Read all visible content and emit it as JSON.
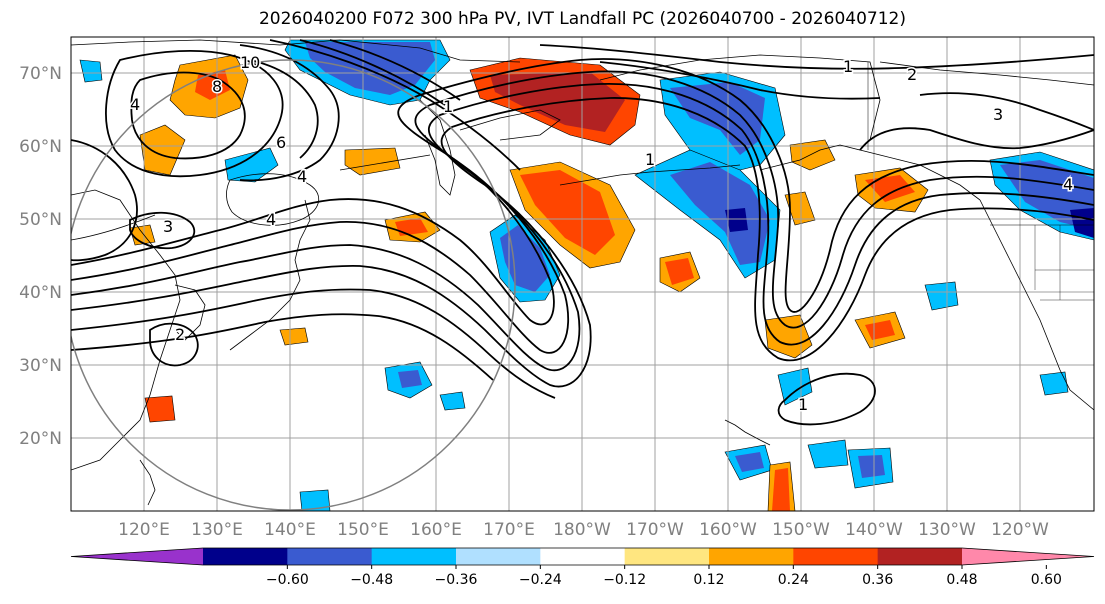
{
  "title": "2026040200 F072 300 hPa PV, IVT Landfall PC (2026040700 - 2026040712)",
  "lat_labels": [
    "70°N",
    "60°N",
    "50°N",
    "40°N",
    "30°N",
    "20°N"
  ],
  "lon_labels": [
    "120°E",
    "130°E",
    "140°E",
    "150°E",
    "160°E",
    "170°E",
    "180°W",
    "170°W",
    "160°W",
    "150°W",
    "140°W",
    "130°W",
    "120°W"
  ],
  "colorbar": {
    "ticks": [
      "−0.60",
      "−0.48",
      "−0.36",
      "−0.24",
      "−0.12",
      "0.12",
      "0.24",
      "0.36",
      "0.48",
      "0.60"
    ],
    "colors": [
      "#9932cc",
      "#00008b",
      "#3a5bd0",
      "#00bfff",
      "#b0e0ff",
      "#ffffff",
      "#ffe680",
      "#ffa500",
      "#ff4500",
      "#b22222",
      "#ff88aa"
    ]
  },
  "contour_labels": [
    "10",
    "8",
    "4",
    "6",
    "4",
    "3",
    "4",
    "2",
    "1",
    "1",
    "1",
    "1",
    "3",
    "2",
    "4"
  ],
  "map": {
    "extent_lon": [
      110,
      250
    ],
    "extent_lat": [
      10,
      75
    ],
    "fill_colors": {
      "neg_strong": "#3a5bd0",
      "neg_mid": "#00bfff",
      "neg_dark": "#00008b",
      "pos_light": "#ffe680",
      "pos_mid": "#ffa500",
      "pos_strong": "#ff4500",
      "pos_dark": "#b22222"
    }
  }
}
